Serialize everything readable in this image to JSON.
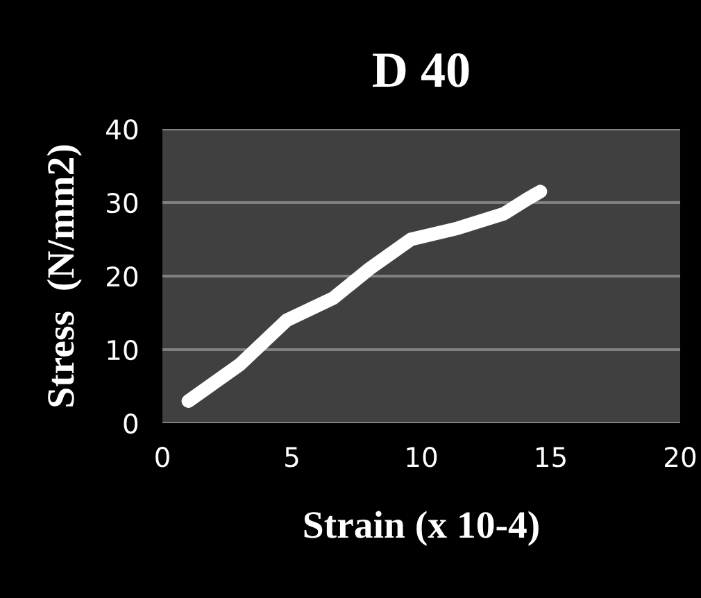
{
  "chart_data": {
    "type": "line",
    "title": "D 40",
    "xlabel": "Strain (x 10-4)",
    "ylabel": "Stress  (N/mm2)",
    "x": [
      1.0,
      3.0,
      4.8,
      6.6,
      8.0,
      9.6,
      11.4,
      13.2,
      14.1,
      14.6
    ],
    "series": [
      {
        "color": "#ffffff",
        "values": [
          3,
          8,
          14,
          17,
          21,
          25,
          26.5,
          28.5,
          30.5,
          31.5
        ]
      }
    ],
    "xlim": [
      0,
      20
    ],
    "ylim": [
      0,
      40
    ],
    "xticks": [
      0,
      5,
      10,
      15,
      20
    ],
    "yticks": [
      0,
      10,
      20,
      30,
      40
    ],
    "grid": "y",
    "marker": "none",
    "line_style": "solid",
    "legend": false
  }
}
